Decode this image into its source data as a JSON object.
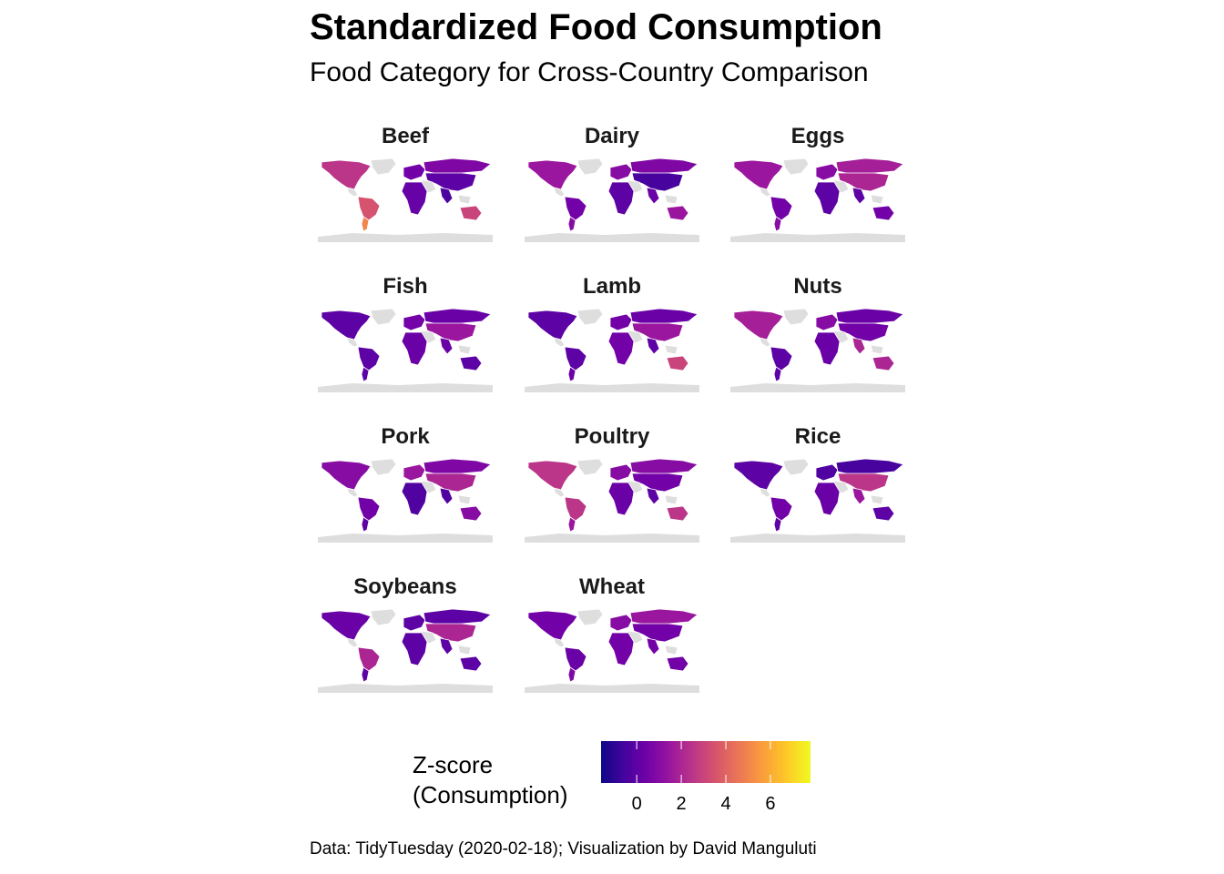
{
  "title": "Standardized Food Consumption",
  "subtitle": "Food Category for Cross-Country Comparison",
  "chart_data": {
    "type": "choropleth-facets",
    "measure": "Z-score of consumption",
    "colormap": "plasma",
    "no_data_color": "#dedede",
    "panels": [
      {
        "name": "Beef",
        "regions": {
          "north_america": 2.5,
          "south_america": 3.5,
          "southern_south_america": 5.0,
          "europe": 0.5,
          "africa": 0.2,
          "russia": 0.8,
          "asia": 0.0,
          "south_asia": -0.4,
          "australia": 3.0
        }
      },
      {
        "name": "Dairy",
        "regions": {
          "north_america": 1.5,
          "south_america": 0.5,
          "southern_south_america": 1.0,
          "europe": 1.0,
          "africa": 0.0,
          "russia": 0.8,
          "asia": -0.5,
          "south_asia": 0.3,
          "australia": 1.5
        }
      },
      {
        "name": "Eggs",
        "regions": {
          "north_america": 1.5,
          "south_america": 0.5,
          "southern_south_america": 1.0,
          "europe": 1.0,
          "africa": 0.0,
          "russia": 1.8,
          "asia": 2.0,
          "south_asia": 0.0,
          "australia": 0.5
        }
      },
      {
        "name": "Fish",
        "regions": {
          "north_america": 0.0,
          "south_america": 0.0,
          "southern_south_america": 0.0,
          "europe": 0.5,
          "africa": 0.3,
          "russia": 0.3,
          "asia": 1.5,
          "south_asia": 0.3,
          "australia": 0.0
        }
      },
      {
        "name": "Lamb",
        "regions": {
          "north_america": 0.0,
          "south_america": 0.0,
          "southern_south_america": 0.3,
          "europe": 0.5,
          "africa": 0.5,
          "russia": 0.3,
          "asia": 1.5,
          "south_asia": 0.0,
          "australia": 3.0
        }
      },
      {
        "name": "Nuts",
        "regions": {
          "north_america": 1.8,
          "south_america": 0.0,
          "southern_south_america": 0.0,
          "europe": 1.0,
          "africa": 0.3,
          "russia": 0.3,
          "asia": 0.5,
          "south_asia": 2.0,
          "australia": 2.0
        }
      },
      {
        "name": "Pork",
        "regions": {
          "north_america": 1.0,
          "south_america": 0.5,
          "southern_south_america": 0.0,
          "europe": 1.5,
          "africa": -0.3,
          "russia": 0.8,
          "asia": 2.0,
          "south_asia": -0.3,
          "australia": 1.0
        }
      },
      {
        "name": "Poultry",
        "regions": {
          "north_america": 2.5,
          "south_america": 2.5,
          "southern_south_america": 1.5,
          "europe": 1.0,
          "africa": 0.3,
          "russia": 1.0,
          "asia": 0.5,
          "south_asia": 0.0,
          "australia": 2.5
        }
      },
      {
        "name": "Rice",
        "regions": {
          "north_america": 0.0,
          "south_america": 0.5,
          "southern_south_america": 0.0,
          "europe": -0.3,
          "africa": 0.3,
          "russia": -0.5,
          "asia": 2.5,
          "south_asia": 1.5,
          "australia": 0.0
        }
      },
      {
        "name": "Soybeans",
        "regions": {
          "north_america": 0.3,
          "south_america": 2.0,
          "southern_south_america": 0.0,
          "europe": 0.0,
          "africa": 0.0,
          "russia": 0.0,
          "asia": 2.0,
          "south_asia": 0.0,
          "australia": 0.0
        }
      },
      {
        "name": "Wheat",
        "regions": {
          "north_america": 0.5,
          "south_america": 0.3,
          "southern_south_america": 0.8,
          "europe": 1.0,
          "africa": 0.5,
          "russia": 1.5,
          "asia": 0.5,
          "south_asia": 0.5,
          "australia": 0.5
        }
      }
    ],
    "legend": {
      "title_lines": [
        "Z-score",
        "(Consumption)"
      ],
      "range": [
        -1.6,
        7.8
      ],
      "ticks": [
        0,
        2,
        4,
        6
      ],
      "tick_labels": [
        "0",
        "2",
        "4",
        "6"
      ]
    }
  },
  "caption": "Data: TidyTuesday (2020-02-18); Visualization by David Manguluti"
}
